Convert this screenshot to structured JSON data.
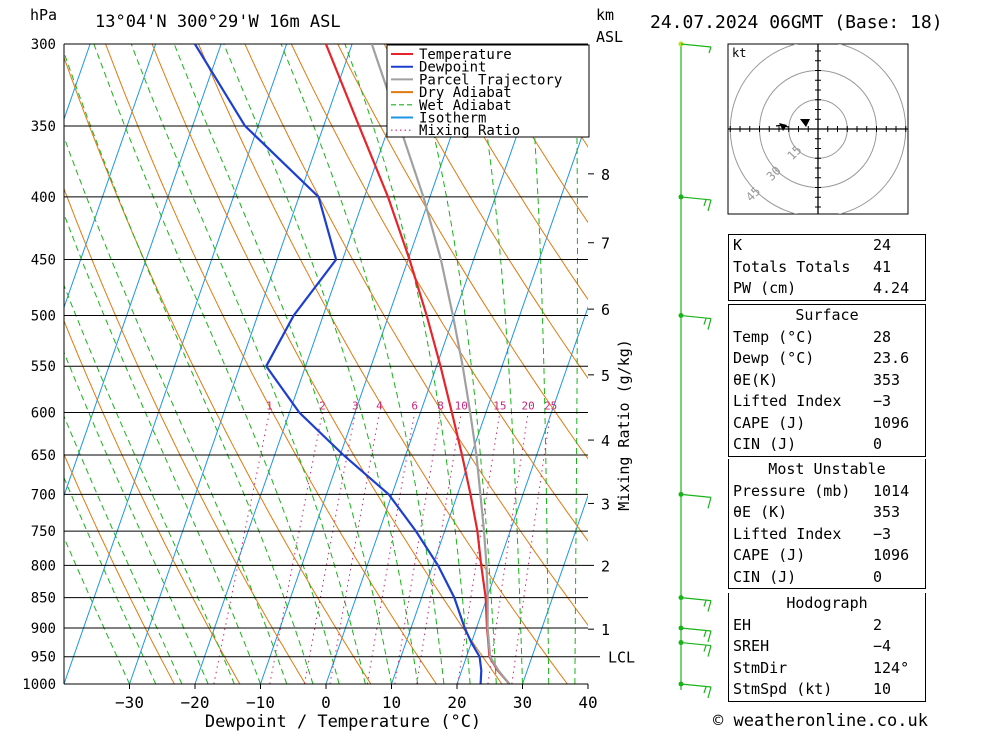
{
  "header": {
    "pressure_unit": "hPa",
    "location": "13°04'N  300°29'W  16m  ASL",
    "km_label": "km",
    "asl_label": "ASL",
    "datetime": "24.07.2024  06GMT  (Base: 18)"
  },
  "footer": {
    "copyright": "© weatheronline.co.uk"
  },
  "legend": {
    "items": [
      {
        "label": "Temperature",
        "color": "#e8242a",
        "style": "solid"
      },
      {
        "label": "Dewpoint",
        "color": "#1d3fcf",
        "style": "solid"
      },
      {
        "label": "Parcel Trajectory",
        "color": "#a0a0a0",
        "style": "solid"
      },
      {
        "label": "Dry Adiabat",
        "color": "#e07a10",
        "style": "solid"
      },
      {
        "label": "Wet Adiabat",
        "color": "#18b418",
        "style": "dashed"
      },
      {
        "label": "Isotherm",
        "color": "#1e96e6",
        "style": "solid"
      },
      {
        "label": "Mixing Ratio",
        "color": "#c8287a",
        "style": "dotted"
      }
    ]
  },
  "chart_data": {
    "type": "line",
    "xlabel": "Dewpoint / Temperature (°C)",
    "ylabel": "hPa",
    "y2label": "km ASL",
    "mixing_ratio_label": "Mixing Ratio (g/kg)",
    "xlim": [
      -40,
      40
    ],
    "ylim": [
      1000,
      300
    ],
    "y_log_scale": true,
    "x_ticks": [
      -30,
      -20,
      -10,
      0,
      10,
      20,
      30,
      40
    ],
    "x_tick_labels": [
      "−30",
      "−20",
      "−10",
      "0",
      "10",
      "20",
      "30",
      "40"
    ],
    "pressure_levels": [
      300,
      350,
      400,
      450,
      500,
      550,
      600,
      650,
      700,
      750,
      800,
      850,
      900,
      950,
      1000
    ],
    "km_ticks": [
      {
        "km": 1,
        "p": 902
      },
      {
        "km": 2,
        "p": 800
      },
      {
        "km": 3,
        "p": 712
      },
      {
        "km": 4,
        "p": 632
      },
      {
        "km": 5,
        "p": 559
      },
      {
        "km": 6,
        "p": 494
      },
      {
        "km": 7,
        "p": 436
      },
      {
        "km": 8,
        "p": 383
      }
    ],
    "lcl": {
      "label": "LCL",
      "p": 950
    },
    "mixing_ratios": [
      1,
      2,
      3,
      4,
      6,
      8,
      10,
      15,
      20,
      25
    ],
    "mixing_ratio_labels": [
      "1",
      "2",
      "3",
      "4",
      "6",
      "8",
      "10",
      "15",
      "20",
      "25"
    ],
    "grid": true,
    "skew_deg_per_log": 65,
    "series": [
      {
        "name": "Temperature",
        "color": "#e8242a",
        "points": [
          [
            1000,
            28
          ],
          [
            975,
            25.5
          ],
          [
            950,
            23.5
          ],
          [
            925,
            22.6
          ],
          [
            900,
            21.6
          ],
          [
            850,
            19.8
          ],
          [
            800,
            17.4
          ],
          [
            750,
            15
          ],
          [
            700,
            12
          ],
          [
            650,
            8.6
          ],
          [
            600,
            4.8
          ],
          [
            550,
            0.6
          ],
          [
            500,
            -4.2
          ],
          [
            450,
            -9.8
          ],
          [
            400,
            -16.4
          ],
          [
            350,
            -24.6
          ],
          [
            300,
            -34
          ]
        ]
      },
      {
        "name": "Dewpoint",
        "color": "#1d3fcf",
        "points": [
          [
            1000,
            23.6
          ],
          [
            975,
            23
          ],
          [
            950,
            22
          ],
          [
            925,
            20
          ],
          [
            900,
            18.2
          ],
          [
            850,
            15
          ],
          [
            800,
            10.8
          ],
          [
            750,
            5.6
          ],
          [
            700,
            -0.5
          ],
          [
            650,
            -9.5
          ],
          [
            600,
            -18.5
          ],
          [
            550,
            -26
          ],
          [
            500,
            -24.5
          ],
          [
            450,
            -21
          ],
          [
            400,
            -27
          ],
          [
            350,
            -42
          ],
          [
            300,
            -54
          ]
        ]
      },
      {
        "name": "Parcel Trajectory",
        "color": "#a0a0a0",
        "points": [
          [
            1000,
            28
          ],
          [
            975,
            25.6
          ],
          [
            950,
            23.6
          ],
          [
            900,
            21.7
          ],
          [
            850,
            20.1
          ],
          [
            800,
            18.2
          ],
          [
            750,
            16
          ],
          [
            700,
            13.5
          ],
          [
            650,
            10.8
          ],
          [
            600,
            7.6
          ],
          [
            550,
            4
          ],
          [
            500,
            -0.2
          ],
          [
            450,
            -5
          ],
          [
            400,
            -11
          ],
          [
            350,
            -18.4
          ],
          [
            300,
            -27
          ]
        ]
      }
    ]
  },
  "wind_barbs": [
    {
      "p": 300,
      "speed_kt": 5
    },
    {
      "p": 400,
      "speed_kt": 15
    },
    {
      "p": 500,
      "speed_kt": 15
    },
    {
      "p": 700,
      "speed_kt": 10
    },
    {
      "p": 850,
      "speed_kt": 15
    },
    {
      "p": 900,
      "speed_kt": 15
    },
    {
      "p": 925,
      "speed_kt": 15
    },
    {
      "p": 1000,
      "speed_kt": 15
    }
  ],
  "hodograph": {
    "unit_label": "kt",
    "rings_kt": [
      15,
      30,
      45
    ],
    "ring_labels": [
      "15",
      "30",
      "45"
    ]
  },
  "indices": {
    "k": {
      "label": "K",
      "value": "24"
    },
    "tt": {
      "label": "Totals Totals",
      "value": "41"
    },
    "pw": {
      "label": "PW (cm)",
      "value": "4.24"
    }
  },
  "surface": {
    "title": "Surface",
    "temp": {
      "label": "Temp (°C)",
      "value": "28"
    },
    "dewp": {
      "label": "Dewp (°C)",
      "value": "23.6"
    },
    "theta": {
      "label": "θE(K)",
      "value": "353"
    },
    "li": {
      "label": "Lifted Index",
      "value": "−3"
    },
    "cape": {
      "label": "CAPE (J)",
      "value": "1096"
    },
    "cin": {
      "label": "CIN (J)",
      "value": "0"
    }
  },
  "most_unstable": {
    "title": "Most Unstable",
    "pressure": {
      "label": "Pressure (mb)",
      "value": "1014"
    },
    "theta": {
      "label": "θE (K)",
      "value": "353"
    },
    "li": {
      "label": "Lifted Index",
      "value": "−3"
    },
    "cape": {
      "label": "CAPE (J)",
      "value": "1096"
    },
    "cin": {
      "label": "CIN (J)",
      "value": "0"
    }
  },
  "hodograph_params": {
    "title": "Hodograph",
    "eh": {
      "label": "EH",
      "value": "2"
    },
    "sreh": {
      "label": "SREH",
      "value": "−4"
    },
    "stmdir": {
      "label": "StmDir",
      "value": "124°"
    },
    "stmspd": {
      "label": "StmSpd (kt)",
      "value": "10"
    }
  }
}
